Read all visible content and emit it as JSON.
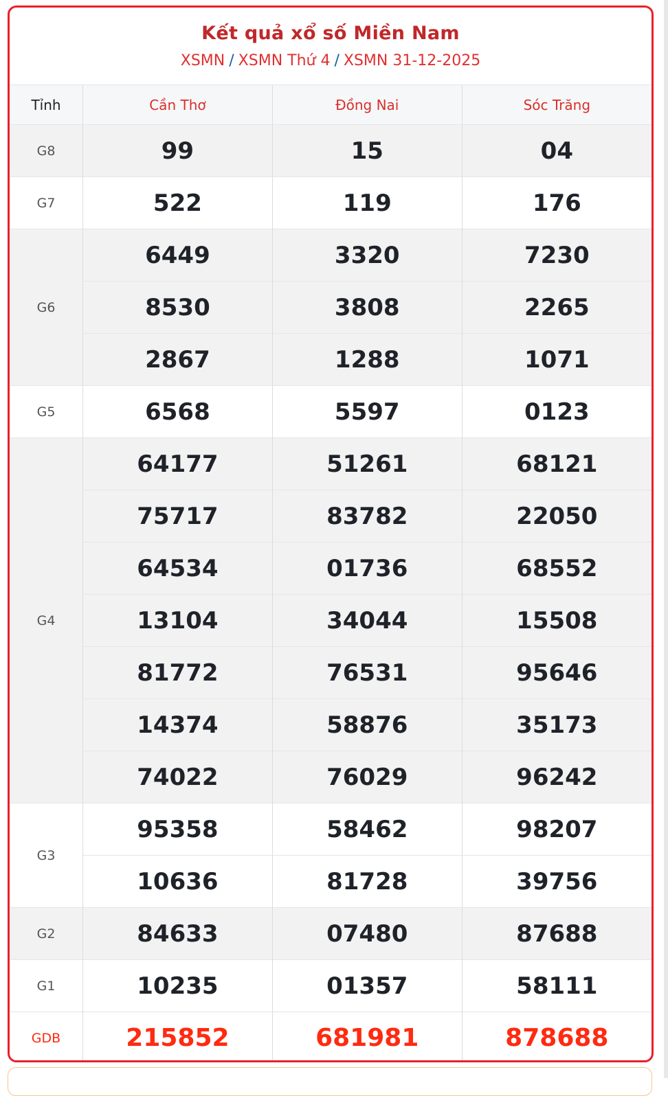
{
  "header": {
    "title": "Kết quả xổ số Miền Nam",
    "breadcrumb": [
      "XSMN",
      "XSMN Thứ 4",
      "XSMN 31-12-2025"
    ],
    "separator": "/"
  },
  "table": {
    "corner_label": "Tỉnh",
    "provinces": [
      "Cần Thơ",
      "Đồng Nai",
      "Sóc Trăng"
    ],
    "prizes": [
      {
        "label": "G8",
        "rows": [
          [
            "99",
            "15",
            "04"
          ]
        ]
      },
      {
        "label": "G7",
        "rows": [
          [
            "522",
            "119",
            "176"
          ]
        ]
      },
      {
        "label": "G6",
        "rows": [
          [
            "6449",
            "3320",
            "7230"
          ],
          [
            "8530",
            "3808",
            "2265"
          ],
          [
            "2867",
            "1288",
            "1071"
          ]
        ]
      },
      {
        "label": "G5",
        "rows": [
          [
            "6568",
            "5597",
            "0123"
          ]
        ]
      },
      {
        "label": "G4",
        "rows": [
          [
            "64177",
            "51261",
            "68121"
          ],
          [
            "75717",
            "83782",
            "22050"
          ],
          [
            "64534",
            "01736",
            "68552"
          ],
          [
            "13104",
            "34044",
            "15508"
          ],
          [
            "81772",
            "76531",
            "95646"
          ],
          [
            "14374",
            "58876",
            "35173"
          ],
          [
            "74022",
            "76029",
            "96242"
          ]
        ]
      },
      {
        "label": "G3",
        "rows": [
          [
            "95358",
            "58462",
            "98207"
          ],
          [
            "10636",
            "81728",
            "39756"
          ]
        ]
      },
      {
        "label": "G2",
        "rows": [
          [
            "84633",
            "07480",
            "87688"
          ]
        ]
      },
      {
        "label": "G1",
        "rows": [
          [
            "10235",
            "01357",
            "58111"
          ]
        ]
      },
      {
        "label": "GDB",
        "rows": [
          [
            "215852",
            "681981",
            "878688"
          ]
        ]
      }
    ]
  },
  "colors": {
    "border": "#e8202a",
    "title": "#c0282a",
    "special": "#ff2a10",
    "row_alt": "#f2f2f2"
  }
}
